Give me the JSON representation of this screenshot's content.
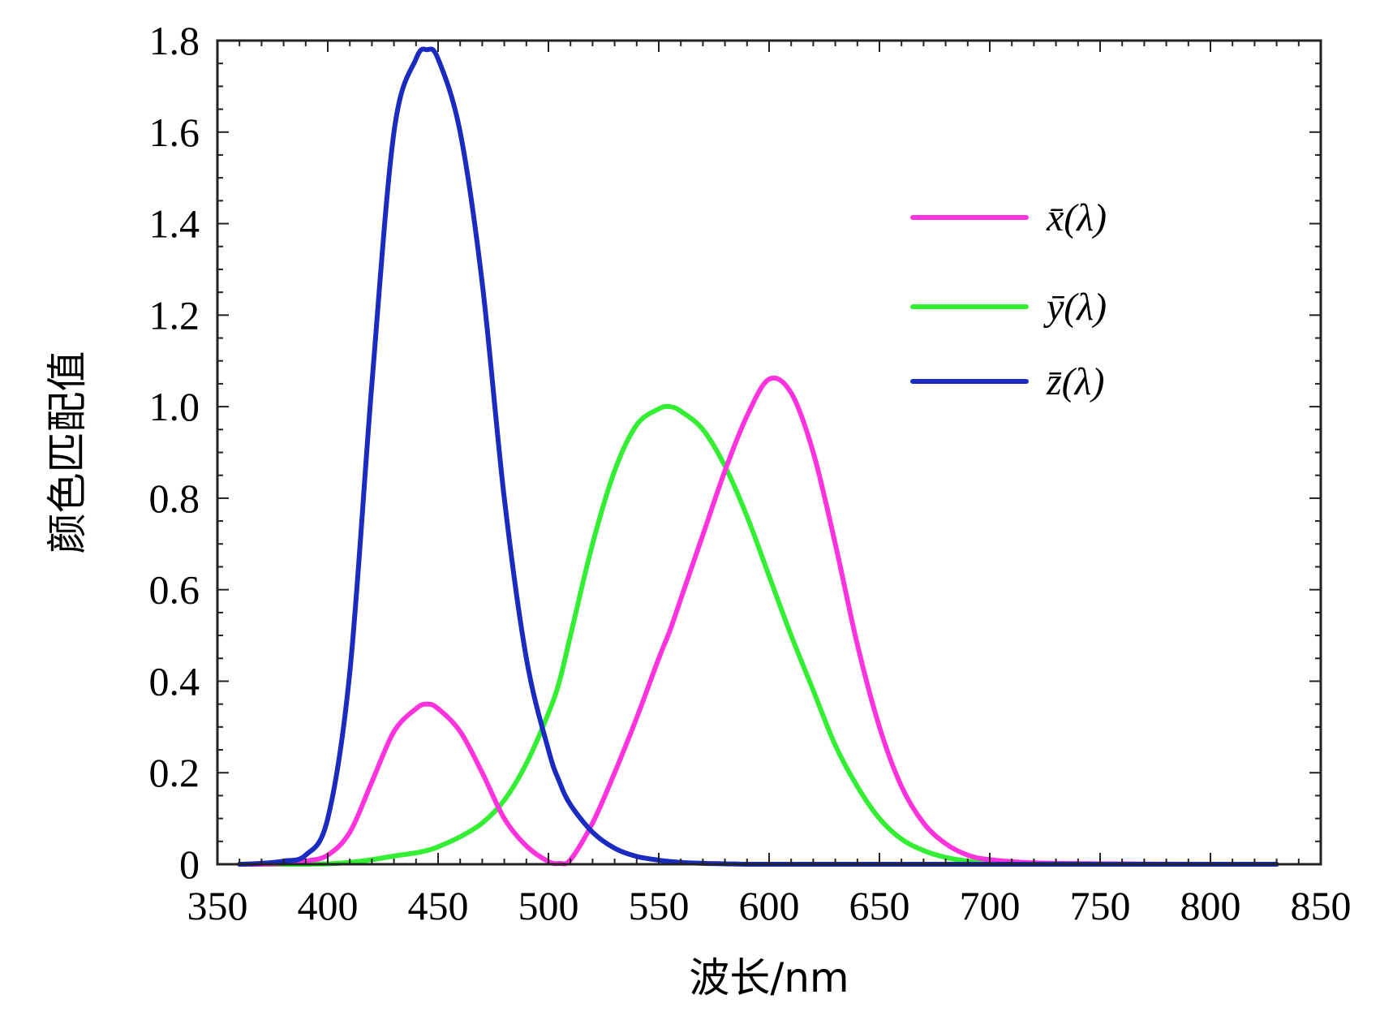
{
  "chart_data": {
    "type": "line",
    "xlabel": "波长/nm",
    "ylabel": "颜色匹配值",
    "xlim": [
      350,
      850
    ],
    "ylim": [
      0,
      1.8
    ],
    "x_ticks": [
      350,
      400,
      450,
      500,
      550,
      600,
      650,
      700,
      750,
      800,
      850
    ],
    "y_ticks": [
      0,
      0.2,
      0.4,
      0.6,
      0.8,
      1.0,
      1.2,
      1.4,
      1.6,
      1.8
    ],
    "x_tick_labels": [
      "350",
      "400",
      "450",
      "500",
      "550",
      "600",
      "650",
      "700",
      "750",
      "800",
      "850"
    ],
    "y_tick_labels": [
      "0",
      "0.2",
      "0.4",
      "0.6",
      "0.8",
      "1.0",
      "1.2",
      "1.4",
      "1.6",
      "1.8"
    ],
    "legend_position": "top-right",
    "grid": false,
    "x": [
      360,
      370,
      380,
      390,
      400,
      410,
      420,
      430,
      440,
      445,
      450,
      460,
      470,
      480,
      490,
      500,
      505,
      510,
      520,
      530,
      540,
      550,
      555,
      560,
      570,
      580,
      590,
      600,
      610,
      620,
      630,
      640,
      650,
      660,
      670,
      680,
      690,
      700,
      720,
      750,
      800,
      830
    ],
    "series": [
      {
        "name": "x̄(λ)",
        "color": "#ff33dd",
        "values": [
          0.0,
          0.0,
          0.002,
          0.007,
          0.02,
          0.07,
          0.18,
          0.29,
          0.34,
          0.35,
          0.34,
          0.29,
          0.2,
          0.1,
          0.04,
          0.006,
          0.002,
          0.01,
          0.09,
          0.2,
          0.32,
          0.45,
          0.51,
          0.58,
          0.72,
          0.86,
          0.98,
          1.06,
          1.03,
          0.9,
          0.7,
          0.48,
          0.3,
          0.17,
          0.09,
          0.045,
          0.02,
          0.01,
          0.003,
          0.001,
          0.0,
          0.0
        ]
      },
      {
        "name": "ȳ(λ)",
        "color": "#33ee33",
        "values": [
          0.0,
          0.0,
          0.0,
          0.0,
          0.001,
          0.004,
          0.01,
          0.018,
          0.025,
          0.03,
          0.038,
          0.06,
          0.09,
          0.14,
          0.22,
          0.33,
          0.4,
          0.5,
          0.7,
          0.86,
          0.96,
          0.995,
          1.0,
          0.99,
          0.95,
          0.87,
          0.76,
          0.63,
          0.5,
          0.38,
          0.26,
          0.17,
          0.1,
          0.055,
          0.03,
          0.015,
          0.007,
          0.003,
          0.001,
          0.0,
          0.0,
          0.0
        ]
      },
      {
        "name": "z̄(λ)",
        "color": "#1a2bbf",
        "values": [
          0.0,
          0.002,
          0.007,
          0.02,
          0.1,
          0.42,
          1.05,
          1.6,
          1.76,
          1.78,
          1.76,
          1.6,
          1.27,
          0.8,
          0.45,
          0.25,
          0.18,
          0.13,
          0.07,
          0.035,
          0.017,
          0.009,
          0.006,
          0.004,
          0.002,
          0.001,
          0.0,
          0.0,
          0.0,
          0.0,
          0.0,
          0.0,
          0.0,
          0.0,
          0.0,
          0.0,
          0.0,
          0.0,
          0.0,
          0.0,
          0.0,
          0.0
        ]
      }
    ]
  }
}
